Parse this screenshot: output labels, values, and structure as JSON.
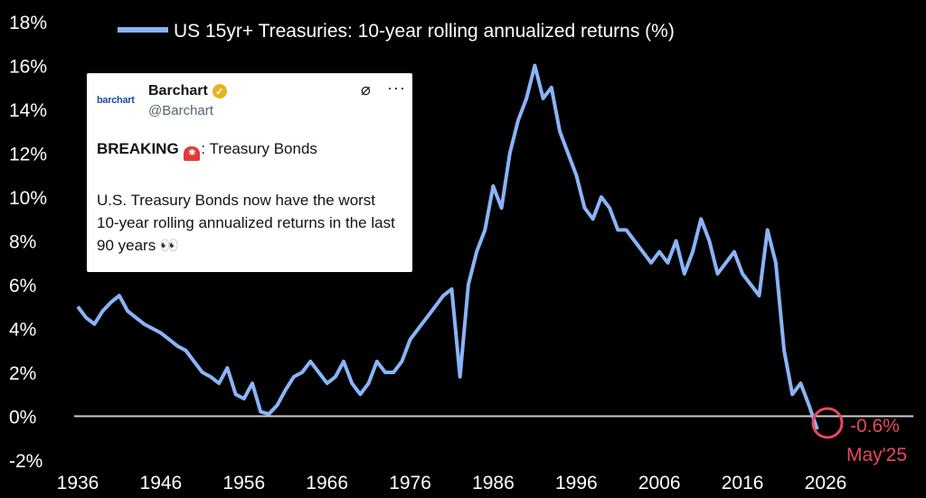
{
  "chart_data": {
    "type": "line",
    "title": "",
    "xlabel": "",
    "ylabel": "",
    "ylim": [
      -2,
      18
    ],
    "xlim": [
      1936,
      2026
    ],
    "y_ticks": [
      "18%",
      "16%",
      "14%",
      "12%",
      "10%",
      "8%",
      "6%",
      "4%",
      "2%",
      "0%",
      "-2%"
    ],
    "y_tick_values": [
      18,
      16,
      14,
      12,
      10,
      8,
      6,
      4,
      2,
      0,
      -2
    ],
    "x_ticks": [
      "1936",
      "1946",
      "1956",
      "1966",
      "1976",
      "1986",
      "1996",
      "2006",
      "2016",
      "2026"
    ],
    "x_tick_values": [
      1936,
      1946,
      1956,
      1966,
      1976,
      1986,
      1996,
      2006,
      2016,
      2026
    ],
    "reference_line": 0,
    "grid": false,
    "legend_position": "top",
    "series": [
      {
        "name": "US 15yr+ Treasuries: 10-year rolling annualized returns (%)",
        "color": "#8ab4f8",
        "x": [
          1936,
          1937,
          1938,
          1939,
          1940,
          1941,
          1942,
          1943,
          1944,
          1945,
          1946,
          1947,
          1948,
          1949,
          1950,
          1951,
          1952,
          1953,
          1954,
          1955,
          1956,
          1957,
          1958,
          1959,
          1960,
          1961,
          1962,
          1963,
          1964,
          1965,
          1966,
          1967,
          1968,
          1969,
          1970,
          1971,
          1972,
          1973,
          1974,
          1975,
          1976,
          1977,
          1978,
          1979,
          1980,
          1981,
          1982,
          1983,
          1984,
          1985,
          1986,
          1987,
          1988,
          1989,
          1990,
          1991,
          1992,
          1993,
          1994,
          1995,
          1996,
          1997,
          1998,
          1999,
          2000,
          2001,
          2002,
          2003,
          2004,
          2005,
          2006,
          2007,
          2008,
          2009,
          2010,
          2011,
          2012,
          2013,
          2014,
          2015,
          2016,
          2017,
          2018,
          2019,
          2020,
          2021,
          2022,
          2023,
          2024,
          2025
        ],
        "values": [
          5.0,
          4.5,
          4.2,
          4.8,
          5.2,
          5.5,
          4.8,
          4.5,
          4.2,
          4.0,
          3.8,
          3.5,
          3.2,
          3.0,
          2.5,
          2.0,
          1.8,
          1.5,
          2.2,
          1.0,
          0.8,
          1.5,
          0.2,
          0.1,
          0.5,
          1.2,
          1.8,
          2.0,
          2.5,
          2.0,
          1.5,
          1.8,
          2.5,
          1.5,
          1.0,
          1.5,
          2.5,
          2.0,
          2.0,
          2.5,
          3.5,
          4.0,
          4.5,
          5.0,
          5.5,
          5.8,
          1.8,
          6.0,
          7.5,
          8.5,
          10.5,
          9.5,
          12.0,
          13.5,
          14.5,
          16.0,
          14.5,
          15.0,
          13.0,
          12.0,
          11.0,
          9.5,
          9.0,
          10.0,
          9.5,
          8.5,
          8.5,
          8.0,
          7.5,
          7.0,
          7.5,
          7.0,
          8.0,
          6.5,
          7.5,
          9.0,
          8.0,
          6.5,
          7.0,
          7.5,
          6.5,
          6.0,
          5.5,
          8.5,
          7.0,
          3.0,
          1.0,
          1.5,
          0.5,
          -0.6
        ]
      }
    ],
    "annotations": [
      {
        "text": "-0.6%",
        "color": "#e8475f"
      },
      {
        "text": "May'25",
        "color": "#e8475f"
      }
    ]
  },
  "tweet": {
    "logo_text": "barchart",
    "name": "Barchart",
    "handle": "@Barchart",
    "verified_icon": "verified-badge-icon",
    "grok_icon": "grok-slash-icon",
    "more_icon": "more-horizontal-icon",
    "breaking_label": "BREAKING",
    "siren_icon": "siren-emoji-icon",
    "breaking_rest": ": Treasury Bonds",
    "body": "U.S. Treasury Bonds now have the worst 10-year rolling annualized returns in the last 90 years 👀"
  }
}
